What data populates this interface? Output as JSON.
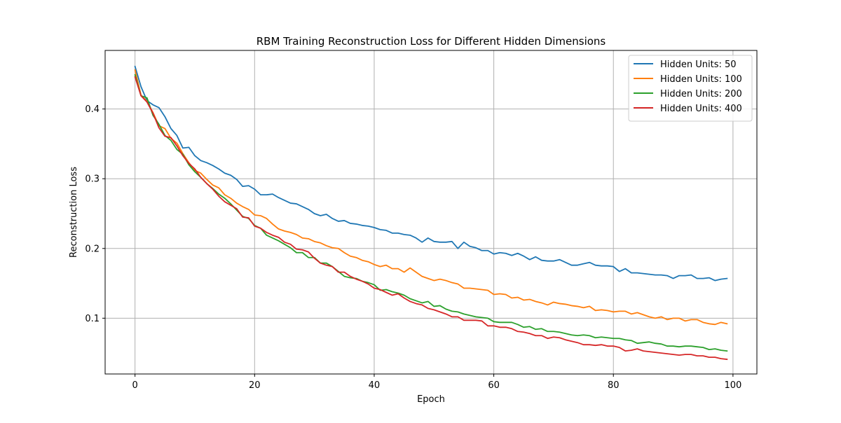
{
  "chart_data": {
    "type": "line",
    "title": "RBM Training Reconstruction Loss for Different Hidden Dimensions",
    "xlabel": "Epoch",
    "ylabel": "Reconstruction Loss",
    "xlim": [
      -5,
      104
    ],
    "ylim": [
      0.02,
      0.484
    ],
    "xticks": [
      0,
      20,
      40,
      60,
      80,
      100
    ],
    "xtick_labels": [
      "0",
      "20",
      "40",
      "60",
      "80",
      "100"
    ],
    "yticks": [
      0.1,
      0.2,
      0.3,
      0.4
    ],
    "ytick_labels": [
      "0.1",
      "0.2",
      "0.3",
      "0.4"
    ],
    "grid": true,
    "legend_position": "top-right",
    "x": [
      0,
      1,
      2,
      3,
      4,
      5,
      6,
      7,
      8,
      9,
      10,
      11,
      12,
      13,
      14,
      15,
      16,
      17,
      18,
      19,
      20,
      21,
      22,
      23,
      24,
      25,
      26,
      27,
      28,
      29,
      30,
      31,
      32,
      33,
      34,
      35,
      36,
      37,
      38,
      39,
      40,
      41,
      42,
      43,
      44,
      45,
      46,
      47,
      48,
      49,
      50,
      51,
      52,
      53,
      54,
      55,
      56,
      57,
      58,
      59,
      60,
      61,
      62,
      63,
      64,
      65,
      66,
      67,
      68,
      69,
      70,
      71,
      72,
      73,
      74,
      75,
      76,
      77,
      78,
      79,
      80,
      81,
      82,
      83,
      84,
      85,
      86,
      87,
      88,
      89,
      90,
      91,
      92,
      93,
      94,
      95,
      96,
      97,
      98,
      99
    ],
    "series": [
      {
        "name": "Hidden Units: 50",
        "color": "#1f77b4",
        "values": [
          0.461,
          0.432,
          0.412,
          0.406,
          0.402,
          0.389,
          0.372,
          0.362,
          0.344,
          0.345,
          0.333,
          0.326,
          0.323,
          0.319,
          0.314,
          0.308,
          0.305,
          0.299,
          0.289,
          0.29,
          0.285,
          0.277,
          0.277,
          0.278,
          0.273,
          0.269,
          0.265,
          0.264,
          0.26,
          0.256,
          0.25,
          0.247,
          0.249,
          0.243,
          0.239,
          0.24,
          0.236,
          0.235,
          0.233,
          0.232,
          0.23,
          0.227,
          0.226,
          0.222,
          0.222,
          0.22,
          0.219,
          0.215,
          0.209,
          0.215,
          0.21,
          0.209,
          0.209,
          0.21,
          0.2,
          0.209,
          0.203,
          0.201,
          0.197,
          0.197,
          0.192,
          0.194,
          0.193,
          0.19,
          0.193,
          0.189,
          0.184,
          0.188,
          0.183,
          0.182,
          0.182,
          0.184,
          0.18,
          0.176,
          0.176,
          0.178,
          0.18,
          0.176,
          0.175,
          0.175,
          0.174,
          0.167,
          0.171,
          0.165,
          0.165,
          0.164,
          0.163,
          0.162,
          0.162,
          0.161,
          0.157,
          0.161,
          0.161,
          0.162,
          0.157,
          0.157,
          0.158,
          0.154,
          0.156,
          0.157
        ]
      },
      {
        "name": "Hidden Units: 100",
        "color": "#ff7f0e",
        "values": [
          0.456,
          0.42,
          0.411,
          0.395,
          0.376,
          0.372,
          0.358,
          0.351,
          0.336,
          0.323,
          0.312,
          0.308,
          0.299,
          0.291,
          0.287,
          0.277,
          0.272,
          0.265,
          0.26,
          0.256,
          0.248,
          0.247,
          0.243,
          0.235,
          0.228,
          0.225,
          0.223,
          0.22,
          0.215,
          0.214,
          0.21,
          0.208,
          0.204,
          0.201,
          0.2,
          0.194,
          0.189,
          0.187,
          0.183,
          0.181,
          0.177,
          0.174,
          0.176,
          0.171,
          0.171,
          0.166,
          0.172,
          0.166,
          0.16,
          0.157,
          0.154,
          0.156,
          0.154,
          0.151,
          0.149,
          0.143,
          0.143,
          0.142,
          0.141,
          0.14,
          0.134,
          0.135,
          0.134,
          0.129,
          0.13,
          0.126,
          0.127,
          0.124,
          0.122,
          0.119,
          0.123,
          0.121,
          0.12,
          0.118,
          0.117,
          0.115,
          0.117,
          0.111,
          0.112,
          0.111,
          0.109,
          0.11,
          0.11,
          0.106,
          0.108,
          0.105,
          0.102,
          0.1,
          0.102,
          0.098,
          0.1,
          0.1,
          0.096,
          0.098,
          0.098,
          0.094,
          0.092,
          0.091,
          0.094,
          0.092
        ]
      },
      {
        "name": "Hidden Units: 200",
        "color": "#2ca02c",
        "values": [
          0.449,
          0.419,
          0.416,
          0.391,
          0.378,
          0.362,
          0.355,
          0.342,
          0.335,
          0.32,
          0.31,
          0.302,
          0.293,
          0.286,
          0.278,
          0.272,
          0.264,
          0.255,
          0.246,
          0.243,
          0.233,
          0.229,
          0.219,
          0.215,
          0.211,
          0.206,
          0.201,
          0.194,
          0.194,
          0.187,
          0.187,
          0.179,
          0.179,
          0.174,
          0.167,
          0.16,
          0.158,
          0.157,
          0.153,
          0.151,
          0.148,
          0.14,
          0.141,
          0.138,
          0.136,
          0.133,
          0.128,
          0.125,
          0.122,
          0.124,
          0.117,
          0.118,
          0.113,
          0.11,
          0.109,
          0.106,
          0.104,
          0.102,
          0.101,
          0.1,
          0.095,
          0.094,
          0.094,
          0.094,
          0.091,
          0.087,
          0.088,
          0.084,
          0.085,
          0.081,
          0.081,
          0.08,
          0.078,
          0.076,
          0.075,
          0.076,
          0.075,
          0.072,
          0.073,
          0.072,
          0.071,
          0.071,
          0.069,
          0.068,
          0.064,
          0.065,
          0.066,
          0.064,
          0.063,
          0.06,
          0.06,
          0.059,
          0.06,
          0.06,
          0.059,
          0.058,
          0.055,
          0.056,
          0.054,
          0.053
        ]
      },
      {
        "name": "Hidden Units: 400",
        "color": "#d62728",
        "values": [
          0.446,
          0.419,
          0.41,
          0.394,
          0.373,
          0.361,
          0.359,
          0.347,
          0.333,
          0.322,
          0.314,
          0.302,
          0.293,
          0.285,
          0.275,
          0.267,
          0.262,
          0.257,
          0.245,
          0.244,
          0.232,
          0.229,
          0.223,
          0.219,
          0.216,
          0.209,
          0.206,
          0.199,
          0.198,
          0.195,
          0.186,
          0.179,
          0.176,
          0.174,
          0.166,
          0.166,
          0.16,
          0.156,
          0.153,
          0.149,
          0.143,
          0.141,
          0.137,
          0.133,
          0.135,
          0.129,
          0.124,
          0.121,
          0.119,
          0.114,
          0.112,
          0.109,
          0.106,
          0.102,
          0.102,
          0.097,
          0.097,
          0.097,
          0.096,
          0.089,
          0.089,
          0.087,
          0.087,
          0.085,
          0.081,
          0.08,
          0.078,
          0.075,
          0.075,
          0.071,
          0.073,
          0.072,
          0.069,
          0.067,
          0.065,
          0.062,
          0.062,
          0.061,
          0.062,
          0.06,
          0.06,
          0.058,
          0.053,
          0.054,
          0.056,
          0.053,
          0.052,
          0.051,
          0.05,
          0.049,
          0.048,
          0.047,
          0.048,
          0.048,
          0.046,
          0.046,
          0.044,
          0.044,
          0.042,
          0.041
        ]
      }
    ]
  }
}
